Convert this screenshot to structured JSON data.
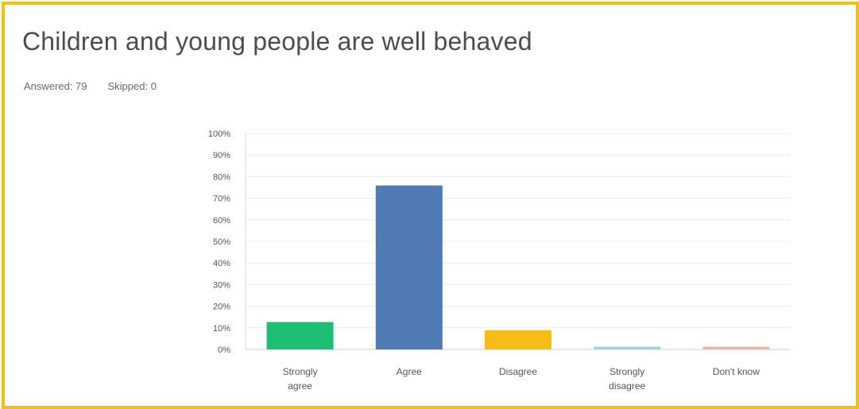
{
  "header": {
    "title": "Children and young people are well behaved",
    "answered": "Answered: 79",
    "skipped": "Skipped: 0"
  },
  "colors": {
    "frame": "#f5bf0f",
    "strongly_agree": "#1dbf73",
    "agree": "#4f7ab3",
    "disagree": "#f6bd16",
    "strongly_disagree": "#9fd4e8",
    "dont_know": "#f4b79e"
  },
  "chart_data": {
    "type": "bar",
    "title": "",
    "xlabel": "",
    "ylabel": "",
    "ylim": [
      0,
      100
    ],
    "yticks": [
      "0%",
      "10%",
      "20%",
      "30%",
      "40%",
      "50%",
      "60%",
      "70%",
      "80%",
      "90%",
      "100%"
    ],
    "categories": [
      [
        "Strongly",
        "agree"
      ],
      [
        "Agree"
      ],
      [
        "Disagree"
      ],
      [
        "Strongly",
        "disagree"
      ],
      [
        "Don't know"
      ]
    ],
    "values": [
      12.7,
      75.9,
      8.9,
      1.3,
      1.3
    ],
    "bar_colors": [
      "#1dbf73",
      "#4f7ab3",
      "#f6bd16",
      "#9fd4e8",
      "#f4b79e"
    ],
    "grid": true
  }
}
